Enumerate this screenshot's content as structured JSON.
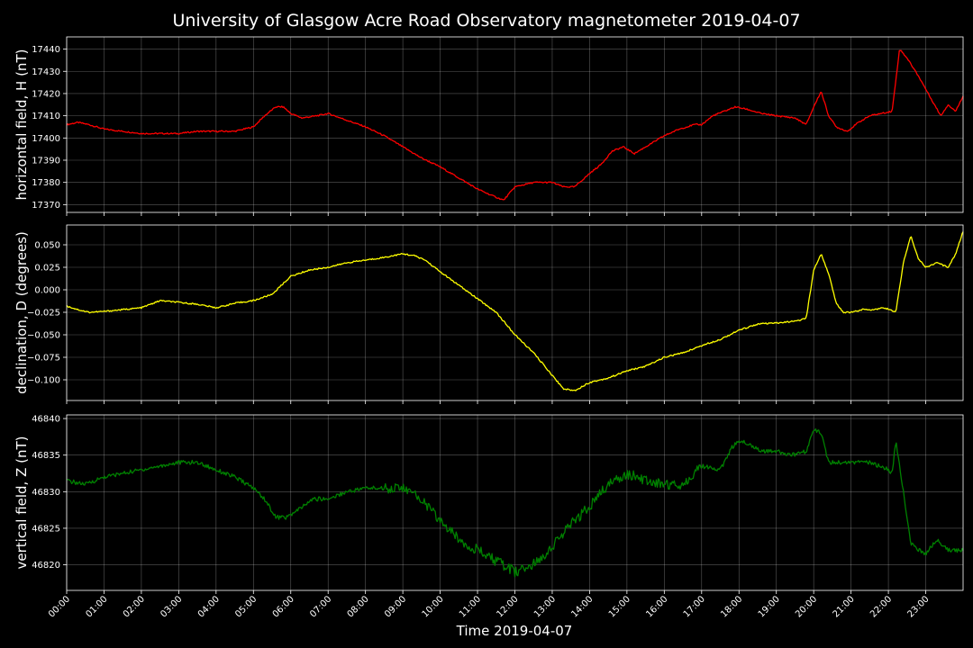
{
  "title": "University of Glasgow Acre Road Observatory magnetometer 2019-04-07",
  "xlabel": "Time 2019-04-07",
  "chart_data": [
    {
      "type": "line",
      "ylabel": "horizontal field, H (nT)",
      "color": "#ff0000",
      "ylim": [
        17366.5,
        17445.5
      ],
      "yticks": [
        17370,
        17380,
        17390,
        17400,
        17410,
        17420,
        17430,
        17440
      ],
      "ytick_labels": [
        "17370",
        "17380",
        "17390",
        "17400",
        "17410",
        "17420",
        "17430",
        "17440"
      ],
      "grid": true,
      "x": [
        0,
        0.3,
        0.6,
        1.0,
        1.5,
        2.0,
        2.5,
        3.0,
        3.5,
        4.0,
        4.5,
        5.0,
        5.3,
        5.6,
        5.8,
        6.0,
        6.3,
        6.7,
        7.0,
        7.5,
        8.0,
        8.5,
        9.0,
        9.5,
        10.0,
        10.5,
        11.0,
        11.4,
        11.7,
        12.0,
        12.5,
        13.0,
        13.3,
        13.6,
        14.0,
        14.3,
        14.6,
        14.9,
        15.2,
        15.6,
        16.0,
        16.4,
        16.8,
        17.0,
        17.3,
        17.6,
        17.9,
        18.2,
        18.6,
        19.0,
        19.5,
        19.8,
        20.0,
        20.2,
        20.4,
        20.6,
        20.9,
        21.2,
        21.5,
        21.8,
        22.1,
        22.3,
        22.5,
        22.8,
        23.1,
        23.4,
        23.6,
        23.8,
        24.0
      ],
      "values": [
        17406,
        17407,
        17406,
        17404,
        17403,
        17402,
        17402,
        17402,
        17403,
        17403,
        17403,
        17405,
        17410,
        17414,
        17414,
        17411,
        17409,
        17410,
        17411,
        17408,
        17405,
        17401,
        17396,
        17391,
        17387,
        17382,
        17377,
        17374,
        17372,
        17378,
        17380,
        17380,
        17378,
        17378,
        17384,
        17388,
        17394,
        17396,
        17393,
        17397,
        17401,
        17404,
        17406,
        17406,
        17410,
        17412,
        17414,
        17413,
        17411,
        17410,
        17409,
        17406,
        17414,
        17421,
        17410,
        17405,
        17403,
        17407,
        17410,
        17411,
        17412,
        17440,
        17436,
        17428,
        17419,
        17410,
        17415,
        17412,
        17419
      ]
    },
    {
      "type": "line",
      "ylabel": "declination, D (degrees)",
      "color": "#ffff00",
      "ylim": [
        -0.123,
        0.072
      ],
      "yticks": [
        -0.1,
        -0.075,
        -0.05,
        -0.025,
        0.0,
        0.025,
        0.05
      ],
      "ytick_labels": [
        "−0.100",
        "−0.075",
        "−0.050",
        "−0.025",
        "0.000",
        "0.025",
        "0.050"
      ],
      "grid": true,
      "x": [
        0,
        0.3,
        0.6,
        1.0,
        1.5,
        2.0,
        2.5,
        3.0,
        3.5,
        4.0,
        4.5,
        5.0,
        5.5,
        6.0,
        6.5,
        7.0,
        7.5,
        8.0,
        8.5,
        9.0,
        9.3,
        9.6,
        10.0,
        10.5,
        11.0,
        11.5,
        12.0,
        12.5,
        13.0,
        13.3,
        13.6,
        14.0,
        14.5,
        15.0,
        15.5,
        16.0,
        16.5,
        17.0,
        17.5,
        18.0,
        18.5,
        19.0,
        19.5,
        19.8,
        20.0,
        20.2,
        20.4,
        20.6,
        20.8,
        21.0,
        21.3,
        21.6,
        21.9,
        22.2,
        22.4,
        22.6,
        22.8,
        23.0,
        23.3,
        23.6,
        23.8,
        24.0
      ],
      "values": [
        -0.018,
        -0.022,
        -0.025,
        -0.024,
        -0.022,
        -0.02,
        -0.012,
        -0.014,
        -0.016,
        -0.02,
        -0.015,
        -0.012,
        -0.005,
        0.015,
        0.022,
        0.025,
        0.03,
        0.033,
        0.036,
        0.04,
        0.038,
        0.033,
        0.02,
        0.005,
        -0.01,
        -0.025,
        -0.05,
        -0.07,
        -0.095,
        -0.11,
        -0.112,
        -0.103,
        -0.098,
        -0.09,
        -0.085,
        -0.075,
        -0.07,
        -0.062,
        -0.055,
        -0.045,
        -0.038,
        -0.037,
        -0.035,
        -0.032,
        0.022,
        0.04,
        0.018,
        -0.015,
        -0.025,
        -0.025,
        -0.022,
        -0.022,
        -0.02,
        -0.025,
        0.03,
        0.06,
        0.035,
        0.025,
        0.03,
        0.025,
        0.04,
        0.065
      ]
    },
    {
      "type": "line",
      "ylabel": "vertical field, Z (nT)",
      "color": "#008000",
      "ylim": [
        46816.5,
        46840.5
      ],
      "yticks": [
        46820,
        46825,
        46830,
        46835,
        46840
      ],
      "ytick_labels": [
        "46820",
        "46825",
        "46830",
        "46835",
        "46840"
      ],
      "grid": true,
      "x": [
        0,
        0.5,
        1.0,
        1.5,
        2.0,
        2.5,
        3.0,
        3.5,
        4.0,
        4.5,
        5.0,
        5.3,
        5.6,
        5.9,
        6.2,
        6.6,
        7.0,
        7.5,
        8.0,
        8.5,
        9.0,
        9.5,
        10.0,
        10.5,
        11.0,
        11.5,
        12.0,
        12.5,
        13.0,
        13.5,
        14.0,
        14.5,
        15.0,
        15.5,
        16.0,
        16.5,
        17.0,
        17.5,
        17.8,
        18.0,
        18.3,
        18.6,
        19.0,
        19.5,
        19.8,
        20.0,
        20.2,
        20.4,
        20.6,
        21.0,
        21.5,
        22.0,
        22.1,
        22.2,
        22.4,
        22.6,
        22.8,
        23.0,
        23.3,
        23.6,
        24.0
      ],
      "values": [
        46831.5,
        46831.0,
        46832.0,
        46832.5,
        46833.0,
        46833.5,
        46834.0,
        46834.0,
        46833.0,
        46832.0,
        46830.5,
        46829.0,
        46826.5,
        46826.5,
        46827.5,
        46829.0,
        46829.0,
        46830.0,
        46830.5,
        46830.5,
        46830.5,
        46829.0,
        46826.0,
        46823.5,
        46822.0,
        46820.5,
        46819.0,
        46820.0,
        46822.5,
        46825.5,
        46828.0,
        46831.0,
        46832.5,
        46831.5,
        46831.0,
        46831.0,
        46833.5,
        46833.0,
        46836.0,
        46837.0,
        46836.5,
        46835.5,
        46835.5,
        46835.0,
        46835.5,
        46838.5,
        46838.0,
        46834.0,
        46834.0,
        46834.0,
        46834.0,
        46833.0,
        46832.5,
        46837.0,
        46830.0,
        46823.0,
        46822.0,
        46821.5,
        46823.5,
        46822.0,
        46822.0
      ]
    }
  ],
  "xticks": [
    0,
    1,
    2,
    3,
    4,
    5,
    6,
    7,
    8,
    9,
    10,
    11,
    12,
    13,
    14,
    15,
    16,
    17,
    18,
    19,
    20,
    21,
    22,
    23
  ],
  "xtick_labels": [
    "00:00",
    "01:00",
    "02:00",
    "03:00",
    "04:00",
    "05:00",
    "06:00",
    "07:00",
    "08:00",
    "09:00",
    "10:00",
    "11:00",
    "12:00",
    "13:00",
    "14:00",
    "15:00",
    "16:00",
    "17:00",
    "18:00",
    "19:00",
    "20:00",
    "21:00",
    "22:00",
    "23:00"
  ],
  "xlim": [
    0,
    24
  ]
}
